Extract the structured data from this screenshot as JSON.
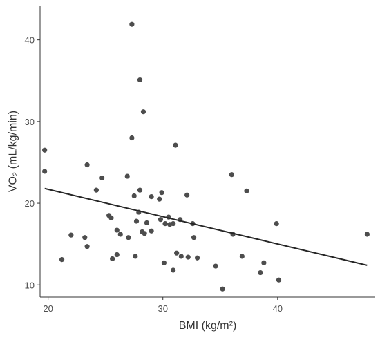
{
  "chart_data": {
    "type": "scatter",
    "xlabel": "BMI (kg/m²)",
    "ylabel": "VO₂ (mL/kg/min)",
    "xlim": [
      19.3,
      48.5
    ],
    "ylim": [
      8.5,
      44.2
    ],
    "x_ticks": [
      20,
      30,
      40
    ],
    "y_ticks": [
      10,
      20,
      30,
      40
    ],
    "grid": false,
    "point_color": "#4d4d4d",
    "line_color": "#262626",
    "points": [
      {
        "x": 19.7,
        "y": 26.5
      },
      {
        "x": 19.7,
        "y": 23.9
      },
      {
        "x": 21.2,
        "y": 13.1
      },
      {
        "x": 22.0,
        "y": 16.1
      },
      {
        "x": 23.2,
        "y": 15.8
      },
      {
        "x": 23.4,
        "y": 14.7
      },
      {
        "x": 23.4,
        "y": 24.7
      },
      {
        "x": 24.2,
        "y": 21.6
      },
      {
        "x": 24.7,
        "y": 23.1
      },
      {
        "x": 25.3,
        "y": 18.5
      },
      {
        "x": 25.5,
        "y": 18.2
      },
      {
        "x": 25.6,
        "y": 13.2
      },
      {
        "x": 26.0,
        "y": 13.7
      },
      {
        "x": 26.0,
        "y": 16.7
      },
      {
        "x": 26.3,
        "y": 16.2
      },
      {
        "x": 26.9,
        "y": 23.3
      },
      {
        "x": 27.0,
        "y": 15.8
      },
      {
        "x": 27.3,
        "y": 41.9
      },
      {
        "x": 27.3,
        "y": 28.0
      },
      {
        "x": 27.5,
        "y": 20.9
      },
      {
        "x": 27.6,
        "y": 13.5
      },
      {
        "x": 27.7,
        "y": 17.8
      },
      {
        "x": 27.9,
        "y": 18.9
      },
      {
        "x": 28.0,
        "y": 35.1
      },
      {
        "x": 28.0,
        "y": 21.6
      },
      {
        "x": 28.2,
        "y": 16.5
      },
      {
        "x": 28.3,
        "y": 31.2
      },
      {
        "x": 28.4,
        "y": 16.3
      },
      {
        "x": 28.6,
        "y": 17.6
      },
      {
        "x": 29.0,
        "y": 16.6
      },
      {
        "x": 29.0,
        "y": 20.8
      },
      {
        "x": 29.7,
        "y": 20.5
      },
      {
        "x": 29.8,
        "y": 18.0
      },
      {
        "x": 29.9,
        "y": 21.3
      },
      {
        "x": 30.1,
        "y": 12.7
      },
      {
        "x": 30.2,
        "y": 17.5
      },
      {
        "x": 30.5,
        "y": 18.3
      },
      {
        "x": 30.6,
        "y": 17.4
      },
      {
        "x": 30.9,
        "y": 17.5
      },
      {
        "x": 30.9,
        "y": 11.8
      },
      {
        "x": 31.1,
        "y": 27.1
      },
      {
        "x": 31.2,
        "y": 13.9
      },
      {
        "x": 31.5,
        "y": 18.0
      },
      {
        "x": 31.6,
        "y": 13.5
      },
      {
        "x": 32.1,
        "y": 21.0
      },
      {
        "x": 32.2,
        "y": 13.4
      },
      {
        "x": 32.6,
        "y": 17.5
      },
      {
        "x": 32.7,
        "y": 15.8
      },
      {
        "x": 33.0,
        "y": 13.3
      },
      {
        "x": 34.6,
        "y": 12.3
      },
      {
        "x": 35.2,
        "y": 9.5
      },
      {
        "x": 36.0,
        "y": 23.5
      },
      {
        "x": 36.1,
        "y": 16.2
      },
      {
        "x": 36.9,
        "y": 13.5
      },
      {
        "x": 37.3,
        "y": 21.5
      },
      {
        "x": 38.5,
        "y": 11.5
      },
      {
        "x": 38.8,
        "y": 12.7
      },
      {
        "x": 39.9,
        "y": 17.5
      },
      {
        "x": 40.1,
        "y": 10.6
      },
      {
        "x": 47.8,
        "y": 16.2
      }
    ],
    "fit_line": {
      "x": [
        19.7,
        47.8
      ],
      "y": [
        21.8,
        12.4
      ]
    }
  }
}
